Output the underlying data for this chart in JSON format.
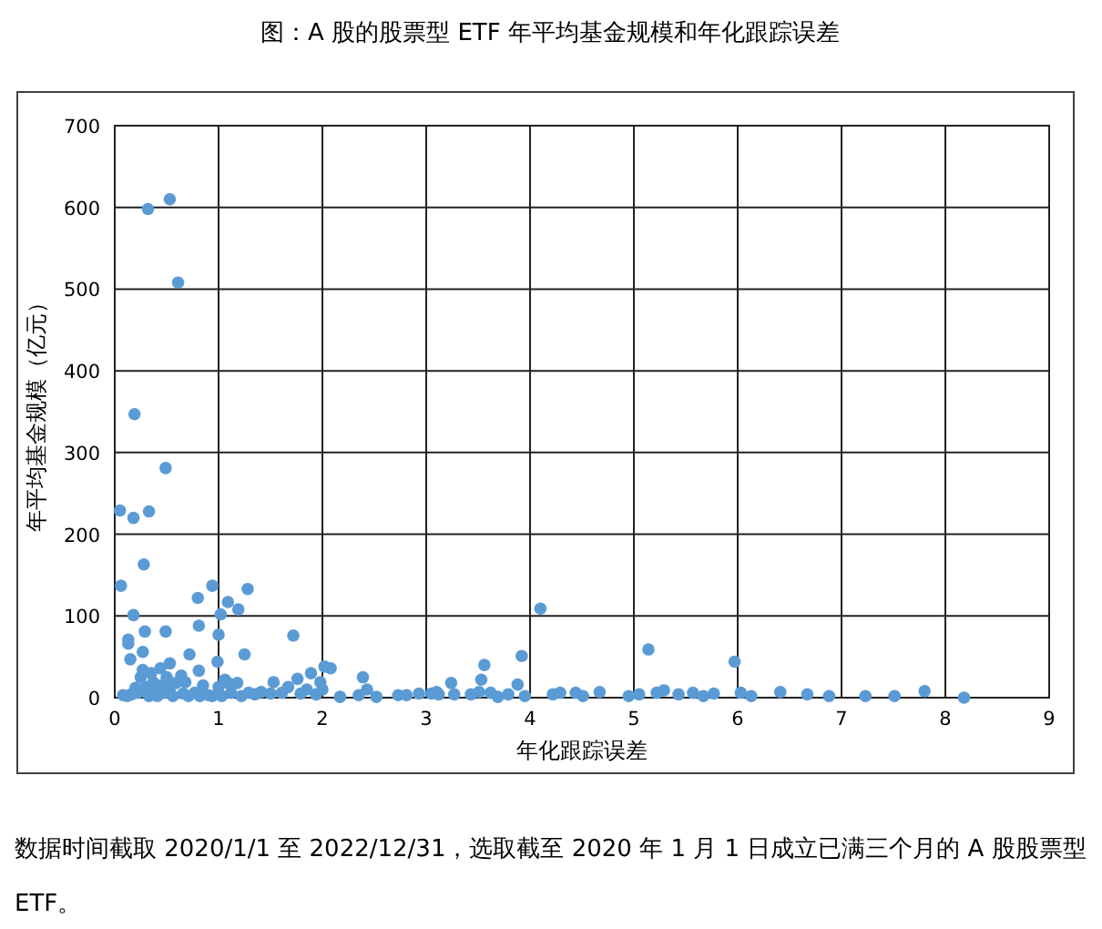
{
  "chart_data": {
    "type": "scatter",
    "title": "图：A 股的股票型 ETF 年平均基金规模和年化跟踪误差",
    "xlabel": "年化跟踪误差",
    "ylabel": "年平均基金规模（亿元）",
    "annotations": [
      "数据时间截取 2020/1/1 至 2022/12/31，选取截至 2020 年 1 月 1 日成立已满三个月的 A 股股票型 ETF。"
    ],
    "x": [
      0.53,
      0.32,
      0.61,
      0.19,
      0.49,
      0.05,
      0.18,
      0.33,
      0.28,
      0.06,
      0.94,
      1.28,
      1.09,
      0.8,
      1.19,
      1.02,
      0.18,
      0.29,
      0.49,
      0.81,
      0.13,
      0.13,
      1.0,
      1.72,
      0.27,
      0.72,
      1.25,
      0.15,
      0.99,
      0.53,
      0.27,
      0.44,
      0.81,
      2.02,
      2.08,
      1.89,
      1.76,
      0.64,
      1.06,
      2.39,
      3.24,
      1.53,
      1.98,
      0.12,
      0.22,
      0.3,
      0.33,
      0.37,
      0.39,
      0.41,
      0.44,
      0.47,
      0.5,
      0.53,
      0.56,
      0.59,
      0.68,
      0.71,
      0.77,
      0.82,
      0.94,
      1.0,
      1.03,
      1.09,
      1.12,
      1.18,
      1.22,
      1.29,
      1.35,
      1.41,
      1.5,
      1.61,
      1.67,
      1.79,
      1.85,
      1.94,
      2.0,
      0.25,
      0.35,
      0.2,
      0.66,
      0.85,
      0.9,
      0.08,
      0.16,
      2.17,
      2.35,
      2.43,
      2.52,
      2.73,
      2.81,
      2.93,
      3.05,
      3.12,
      4.1,
      3.92,
      5.14,
      5.97,
      3.56,
      3.53,
      3.88,
      3.1,
      3.27,
      3.43,
      3.51,
      3.62,
      3.69,
      3.79,
      3.95,
      4.22,
      4.29,
      4.44,
      4.51,
      4.67,
      4.95,
      5.05,
      5.22,
      5.29,
      5.43,
      5.57,
      5.67,
      5.77,
      6.03,
      6.13,
      6.41,
      6.67,
      6.88,
      7.23,
      7.51,
      7.8,
      8.18
    ],
    "values": [
      610,
      598,
      508,
      347,
      281,
      229,
      220,
      228,
      163,
      137,
      137,
      133,
      117,
      122,
      108,
      102,
      101,
      81,
      81,
      88,
      71,
      66,
      77,
      76,
      56,
      53,
      53,
      47,
      44,
      42,
      34,
      36,
      33,
      38,
      36,
      30,
      23,
      27,
      22,
      25,
      18,
      19,
      19,
      2,
      6,
      13,
      2,
      19,
      10,
      2,
      15,
      6,
      25,
      12,
      2,
      18,
      19,
      2,
      6,
      2,
      2,
      13,
      2,
      18,
      6,
      18,
      2,
      6,
      4,
      7,
      5,
      6,
      13,
      5,
      10,
      4,
      10,
      25,
      30,
      12,
      5,
      15,
      3,
      3,
      4,
      1,
      3,
      10,
      1,
      3,
      3,
      5,
      5,
      4,
      109,
      51,
      59,
      44,
      40,
      22,
      16,
      7,
      4,
      4,
      7,
      6,
      1,
      4,
      2,
      4,
      6,
      6,
      2,
      7,
      2,
      4,
      6,
      9,
      4,
      6,
      2,
      5,
      6,
      2,
      7,
      4,
      2,
      2,
      2,
      8,
      0
    ],
    "color": "#5b9bd5",
    "marker": "circle",
    "xlim": [
      0,
      9
    ],
    "ylim": [
      0,
      700
    ],
    "xticks": [
      0,
      1,
      2,
      3,
      4,
      5,
      6,
      7,
      8,
      9
    ],
    "yticks": [
      0,
      100,
      200,
      300,
      400,
      500,
      600,
      700
    ],
    "grid": true
  }
}
